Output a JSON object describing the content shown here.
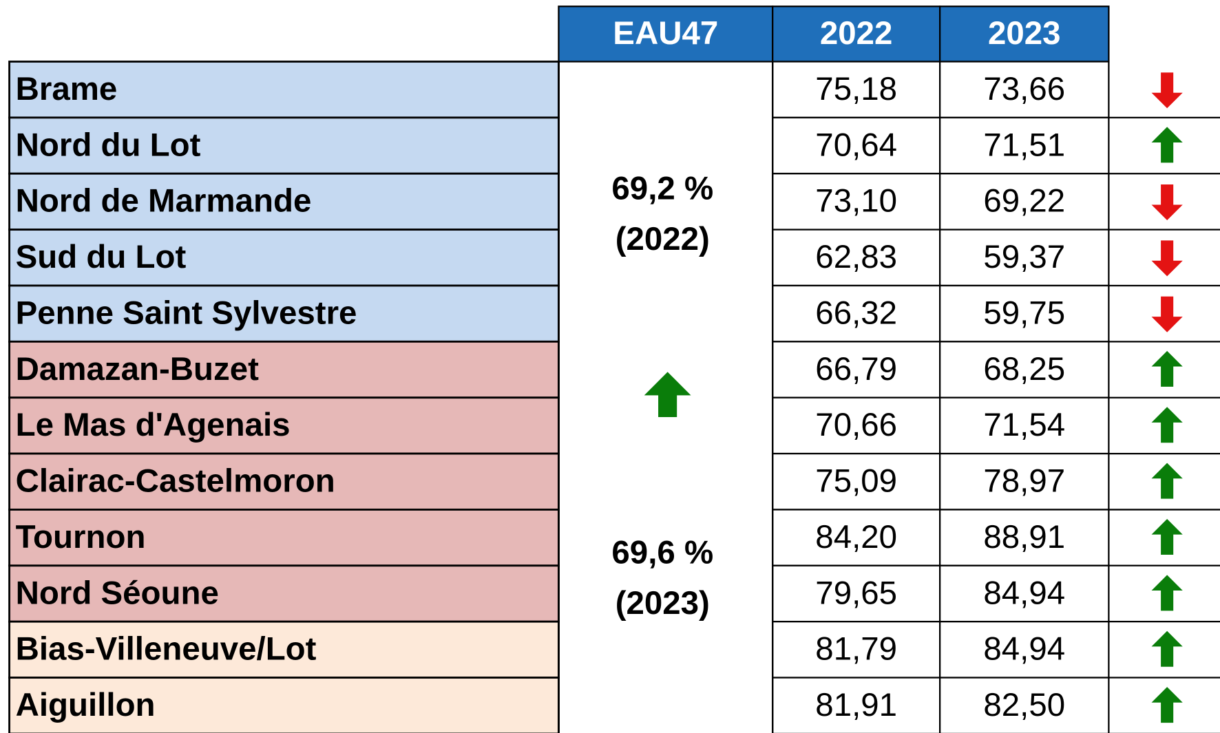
{
  "table": {
    "header": [
      "EAU47",
      "2022",
      "2023"
    ],
    "header_color": "#1f6fba",
    "summary": [
      [
        "69,2 %",
        "(2022)"
      ],
      [
        "69,6 %",
        "(2023)"
      ]
    ],
    "groups": [
      {
        "color": "#c5d9f1",
        "rows": [
          [
            "Brame",
            "75,18",
            "73,66"
          ],
          [
            "Nord du Lot",
            "70,64",
            "71,51"
          ],
          [
            "Nord de Marmande",
            "73,10",
            "69,22"
          ],
          [
            "Sud du Lot",
            "62,83",
            "59,37"
          ],
          [
            "Penne Saint Sylvestre",
            "66,32",
            "59,75"
          ]
        ]
      },
      {
        "color": "#e6b8b7",
        "rows": [
          [
            "Damazan-Buzet",
            "66,79",
            "68,25"
          ],
          [
            "Le Mas d'Agenais",
            "70,66",
            "71,54"
          ],
          [
            "Clairac-Castelmoron",
            "75,09",
            "78,97"
          ],
          [
            "Tournon",
            "84,20",
            "88,91"
          ],
          [
            "Nord Séoune",
            "79,65",
            "84,94"
          ]
        ]
      },
      {
        "color": "#fde9d9",
        "rows": [
          [
            "Bias-Villeneuve/Lot",
            "81,79",
            "84,94"
          ],
          [
            "Aiguillon",
            "81,91",
            "82,50"
          ]
        ]
      }
    ]
  }
}
